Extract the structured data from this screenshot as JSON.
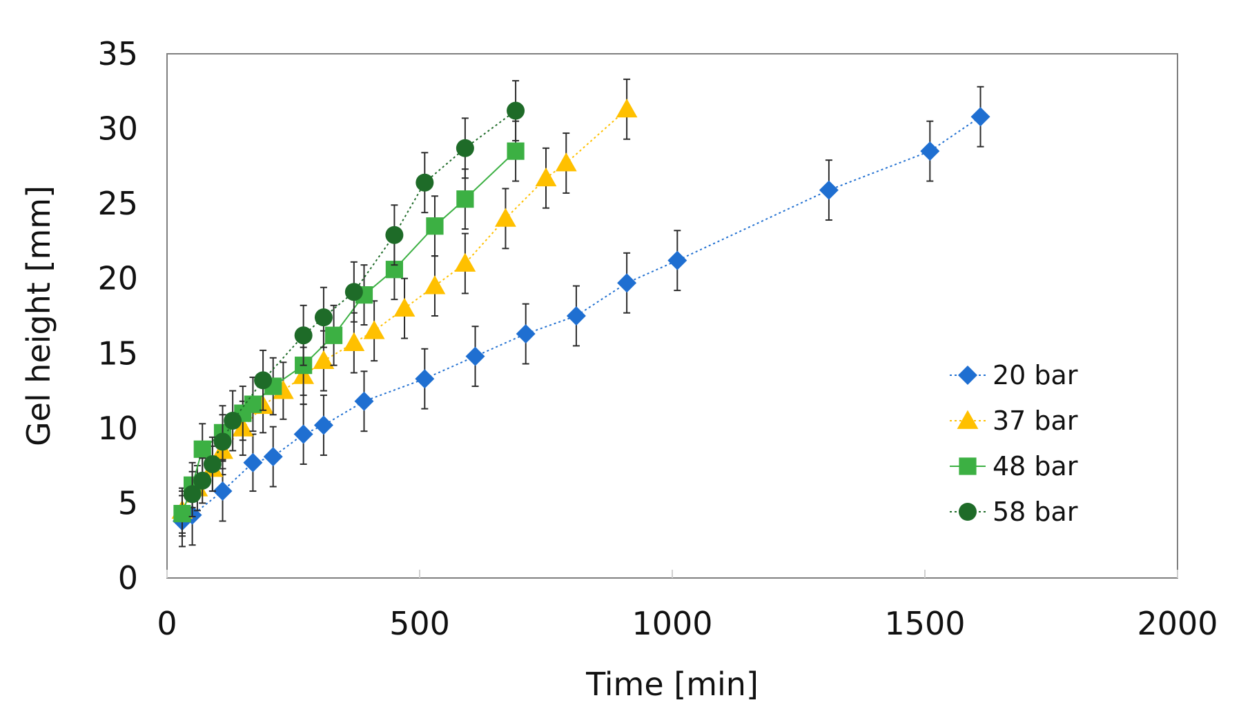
{
  "chart_data": {
    "type": "scatter",
    "title": "",
    "xlabel": "Time [min]",
    "ylabel": "Gel height [mm]",
    "xlim": [
      0,
      2000
    ],
    "ylim": [
      0,
      35
    ],
    "xticks": [
      0,
      500,
      1000,
      1500,
      2000
    ],
    "yticks": [
      0,
      5,
      10,
      15,
      20,
      25,
      30,
      35
    ],
    "grid": false,
    "legend_position": "right",
    "series": [
      {
        "name": "20 bar",
        "marker": "diamond",
        "color": "#1f6fd1",
        "line_style": "dotted",
        "x": [
          30,
          50,
          110,
          170,
          210,
          270,
          310,
          390,
          510,
          610,
          710,
          810,
          910,
          1010,
          1310,
          1510,
          1610
        ],
        "y": [
          3.8,
          4.2,
          5.8,
          7.7,
          8.1,
          9.6,
          10.2,
          11.8,
          13.3,
          14.8,
          16.3,
          17.5,
          19.7,
          21.2,
          25.9,
          28.5,
          30.8
        ],
        "err": [
          1.7,
          2.0,
          2.0,
          1.9,
          2.0,
          2.0,
          2.0,
          2.0,
          2.0,
          2.0,
          2.0,
          2.0,
          2.0,
          2.0,
          2.0,
          2.0,
          2.0
        ]
      },
      {
        "name": "37 bar",
        "marker": "triangle",
        "color": "#ffc000",
        "line_style": "dotted",
        "x": [
          30,
          60,
          90,
          110,
          150,
          190,
          230,
          270,
          310,
          370,
          410,
          470,
          530,
          590,
          670,
          750,
          790,
          910
        ],
        "y": [
          4.5,
          6.0,
          7.3,
          8.5,
          10.0,
          11.5,
          12.5,
          13.5,
          14.5,
          15.7,
          16.5,
          18.0,
          19.5,
          21.0,
          24.0,
          26.7,
          27.7,
          31.3
        ],
        "err": [
          1.5,
          1.5,
          1.5,
          1.6,
          1.8,
          1.8,
          1.9,
          1.9,
          2.0,
          2.0,
          2.0,
          2.0,
          2.0,
          2.0,
          2.0,
          2.0,
          2.0,
          2.0
        ]
      },
      {
        "name": "48 bar",
        "marker": "square",
        "color": "#3cb043",
        "line_style": "solid",
        "x": [
          30,
          50,
          70,
          110,
          150,
          170,
          210,
          270,
          330,
          390,
          450,
          530,
          590,
          690
        ],
        "y": [
          4.3,
          6.2,
          8.6,
          9.7,
          11.0,
          11.6,
          12.8,
          14.2,
          16.2,
          18.9,
          20.6,
          23.5,
          25.3,
          28.5
        ],
        "err": [
          1.5,
          1.5,
          1.7,
          1.8,
          1.8,
          1.8,
          1.9,
          2.0,
          2.0,
          2.0,
          2.0,
          2.0,
          2.0,
          2.0
        ]
      },
      {
        "name": "58 bar",
        "marker": "circle",
        "color": "#1e6b28",
        "line_style": "dotted",
        "x": [
          50,
          70,
          90,
          110,
          130,
          190,
          270,
          310,
          370,
          450,
          510,
          590,
          690
        ],
        "y": [
          5.6,
          6.5,
          7.6,
          9.1,
          10.5,
          13.2,
          16.2,
          17.4,
          19.1,
          22.9,
          26.4,
          28.7,
          31.2
        ],
        "err": [
          1.5,
          1.5,
          1.8,
          1.8,
          2.0,
          2.0,
          2.0,
          2.0,
          2.0,
          2.0,
          2.0,
          2.0,
          2.0
        ]
      }
    ]
  }
}
